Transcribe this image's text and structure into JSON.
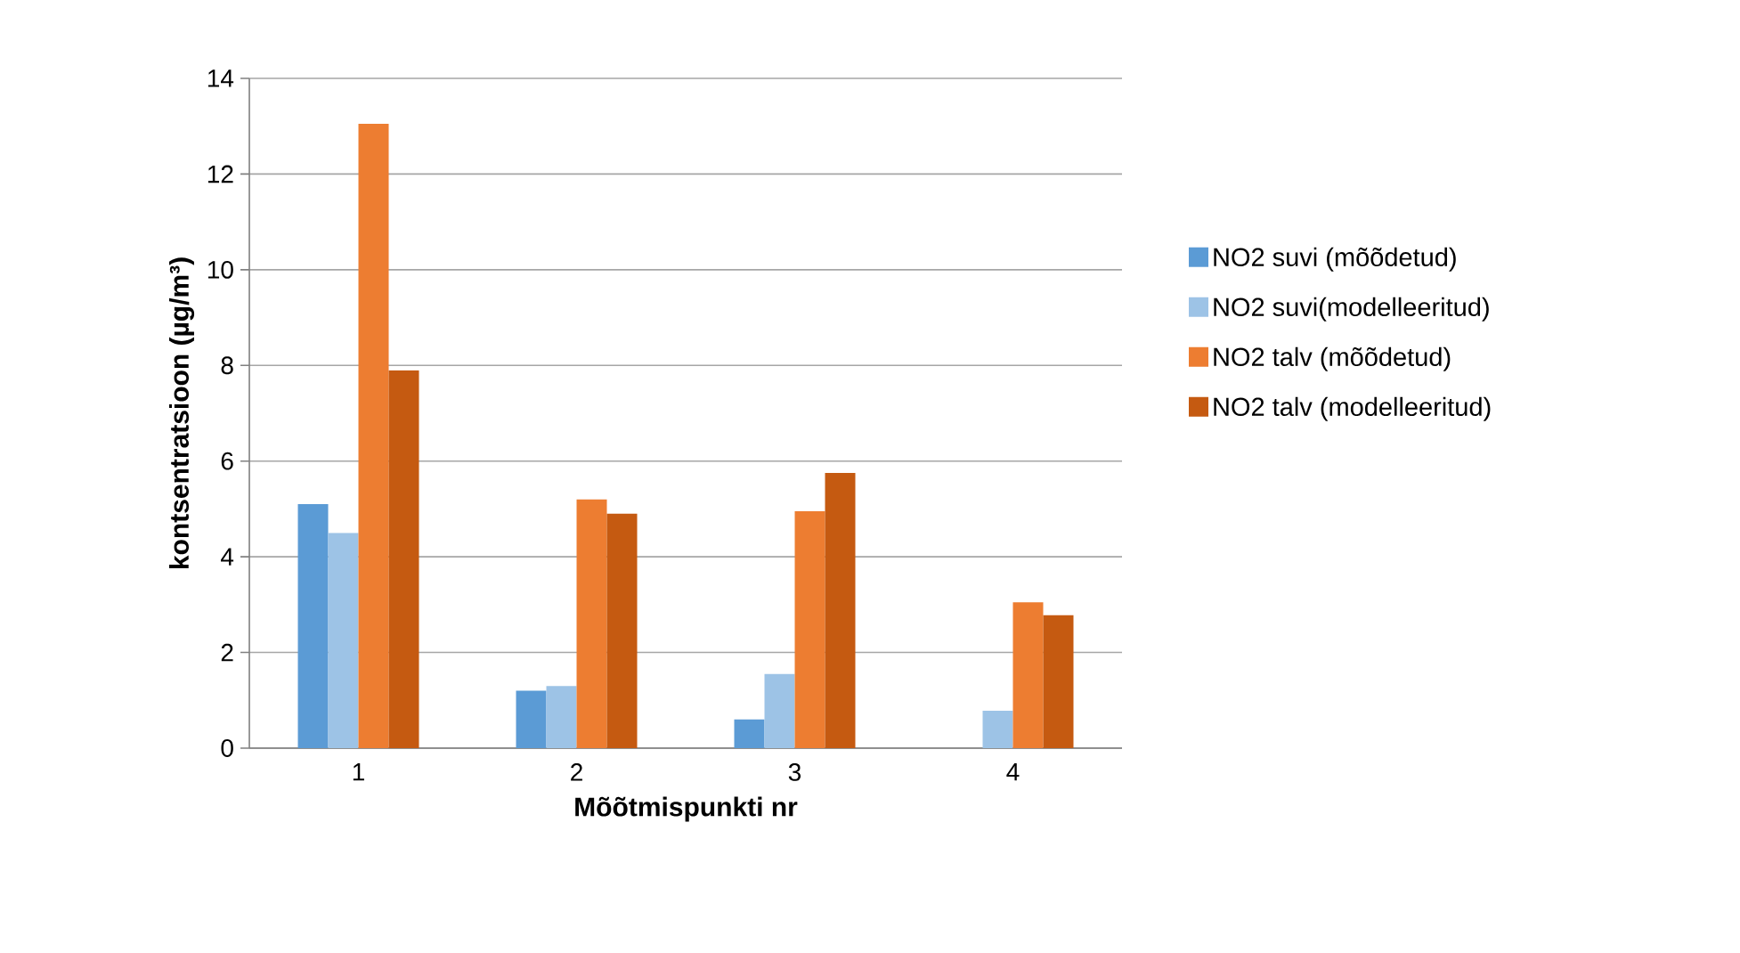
{
  "chart_data": {
    "type": "bar",
    "xlabel": "Mõõtmispunkti nr",
    "ylabel": "kontsentratsioon (µg/m³)",
    "categories": [
      "1",
      "2",
      "3",
      "4"
    ],
    "series": [
      {
        "name": "NO2 suvi (mõõdetud)",
        "color": "#5b9bd5",
        "values": [
          5.1,
          1.2,
          0.6,
          null
        ]
      },
      {
        "name": "NO2 suvi(modelleeritud)",
        "color": "#9dc3e6",
        "values": [
          4.5,
          1.3,
          1.55,
          0.78
        ]
      },
      {
        "name": "NO2 talv (mõõdetud)",
        "color": "#ed7d31",
        "values": [
          13.05,
          5.2,
          4.95,
          3.05
        ]
      },
      {
        "name": "NO2 talv (modelleeritud)",
        "color": "#c55a11",
        "values": [
          7.9,
          4.9,
          5.75,
          2.78
        ]
      }
    ],
    "ylim": [
      0,
      14
    ],
    "yticks": [
      0,
      2,
      4,
      6,
      8,
      10,
      12,
      14
    ],
    "grid": "y",
    "legend": "right"
  }
}
